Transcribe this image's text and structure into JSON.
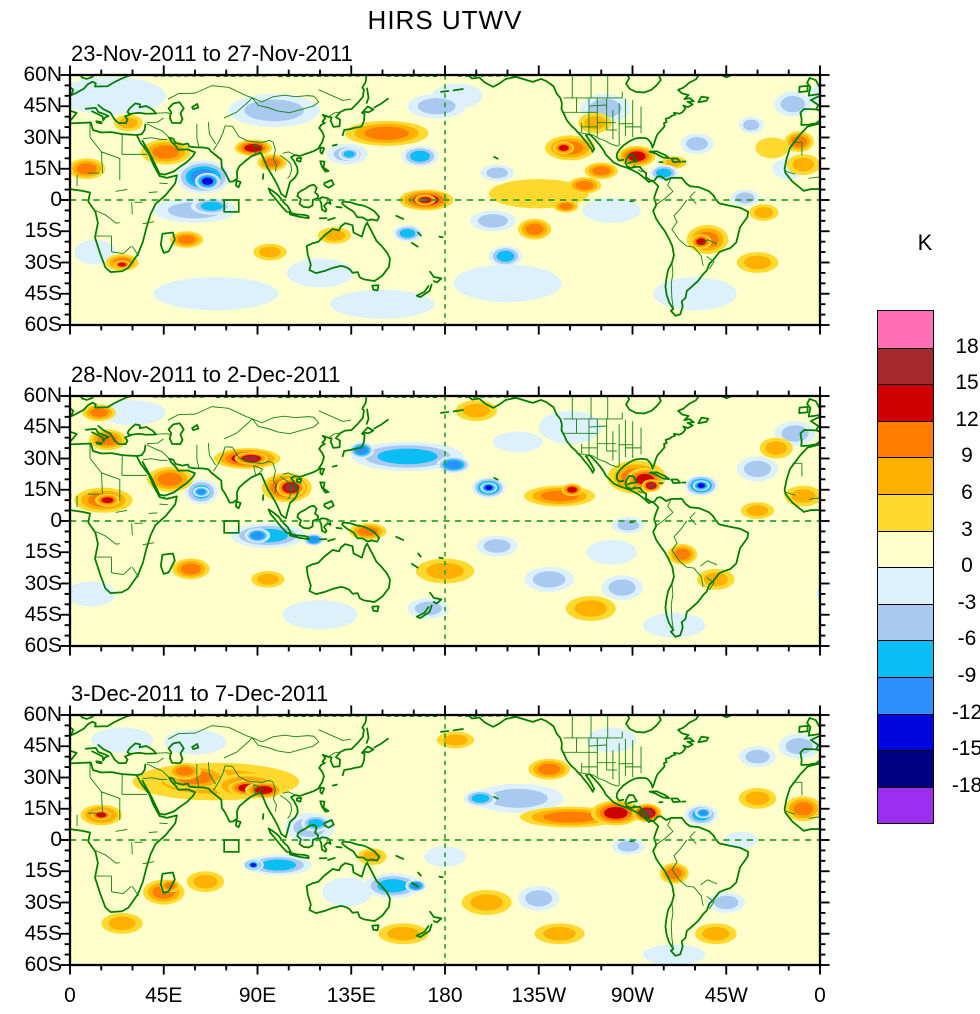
{
  "chart_data": {
    "type": "heatmap",
    "title": "HIRS UTWV",
    "unit": "K",
    "projection": "cylindrical equidistant, lon 0-360 (180 centered by dashed line), lat 60S-60N",
    "axes": {
      "lon_ticks": [
        "0",
        "45E",
        "90E",
        "135E",
        "180",
        "135W",
        "90W",
        "45W",
        "0"
      ],
      "lon_minor_step_deg": 15,
      "lat_ticks": [
        "60N",
        "45N",
        "30N",
        "15N",
        "0",
        "15S",
        "30S",
        "45S",
        "60S"
      ],
      "lat_minor_step_deg": 5,
      "reference_lines": {
        "equator_dashed": true,
        "dateline_dashed": true
      }
    },
    "colorbar": {
      "tick_labels": [
        18,
        15,
        12,
        9,
        6,
        3,
        0,
        -3,
        -6,
        -9,
        -12,
        -15,
        -18
      ],
      "cells_top_to_bottom": [
        "#ff6eb4",
        "#a5292e",
        "#d10000",
        "#ff7d00",
        "#ffb000",
        "#ffd92e",
        "#ffffcb",
        "#dcf1fb",
        "#a9c9f1",
        "#0abef5",
        "#2e90ff",
        "#0007dc",
        "#000082",
        "#9c2eef"
      ],
      "legend_position": "right"
    },
    "palette": {
      "base": "#ffffcb",
      "warm": [
        "#ffd92e",
        "#ffb000",
        "#ff7d00",
        "#d10000",
        "#a5292e",
        "#ff6eb4"
      ],
      "cold": [
        "#dcf1fb",
        "#a9c9f1",
        "#0abef5",
        "#2e90ff",
        "#0007dc",
        "#000082",
        "#9c2eef"
      ]
    },
    "map_colors": {
      "coast": "#007d00",
      "borders": "#168416",
      "dashed_lines": "#2fa02f"
    },
    "region_box": {
      "lon_min": 74,
      "lon_max": 81,
      "lat_min": -5.7,
      "lat_max": 0
    },
    "feature_format": "[lon_deg_east_0_360, lat_deg, rx_deg, ry_deg, peak_anomaly_K]",
    "panels": [
      {
        "title": "23-Nov-2011 to 27-Nov-2011",
        "features": [
          [
            20,
            50,
            26,
            9,
            -3
          ],
          [
            120,
            -35,
            16,
            7,
            -3
          ],
          [
            210,
            -40,
            26,
            9,
            -3
          ],
          [
            300,
            -45,
            20,
            8,
            -3
          ],
          [
            12,
            -25,
            10,
            6,
            -3
          ],
          [
            260,
            -5,
            14,
            6,
            -3
          ],
          [
            186,
            50,
            12,
            6,
            -3
          ],
          [
            345,
            15,
            8,
            5,
            -3
          ],
          [
            70,
            -45,
            30,
            8,
            -3
          ],
          [
            150,
            -50,
            25,
            7,
            -3
          ],
          [
            98,
            43,
            22,
            8,
            -6
          ],
          [
            133,
            22,
            10,
            5,
            -6
          ],
          [
            134,
            22,
            5,
            3,
            -9
          ],
          [
            60,
            -5,
            20,
            6,
            -6
          ],
          [
            68,
            -3,
            10,
            4,
            -9
          ],
          [
            64,
            11,
            13,
            8,
            -12
          ],
          [
            66,
            9,
            6,
            4,
            -15
          ],
          [
            168,
            21,
            9,
            5,
            -9
          ],
          [
            205,
            13,
            8,
            4,
            -6
          ],
          [
            176,
            45,
            14,
            6,
            -6
          ],
          [
            162,
            -16,
            7,
            4,
            -9
          ],
          [
            203,
            -10,
            11,
            5,
            -6
          ],
          [
            209,
            -27,
            8,
            5,
            -9
          ],
          [
            257,
            44,
            12,
            7,
            -6
          ],
          [
            285,
            13,
            7,
            4,
            -9
          ],
          [
            301,
            27,
            8,
            5,
            -6
          ],
          [
            324,
            1,
            7,
            4,
            -6
          ],
          [
            347,
            46,
            9,
            6,
            -6
          ],
          [
            327,
            36,
            6,
            4,
            -6
          ],
          [
            225,
            3,
            24,
            7,
            3
          ],
          [
            247,
            7,
            8,
            4,
            9
          ],
          [
            252,
            37,
            8,
            5,
            6
          ],
          [
            337,
            25,
            8,
            5,
            3
          ],
          [
            330,
            -30,
            10,
            5,
            6
          ],
          [
            56,
            -19,
            8,
            4,
            9
          ],
          [
            96,
            -25,
            8,
            4,
            6
          ],
          [
            127,
            -17,
            8,
            4,
            6
          ],
          [
            28,
            37,
            7,
            4,
            6
          ],
          [
            25,
            -30,
            8,
            4,
            9
          ],
          [
            25,
            -31,
            4,
            2,
            12
          ],
          [
            152,
            32,
            20,
            6,
            9
          ],
          [
            46,
            23,
            12,
            6,
            9
          ],
          [
            8,
            15,
            9,
            5,
            9
          ],
          [
            88,
            25,
            9,
            4,
            12
          ],
          [
            97,
            18,
            7,
            4,
            9
          ],
          [
            171,
            0,
            13,
            5,
            12
          ],
          [
            170.5,
            0,
            5,
            2.5,
            15
          ],
          [
            223,
            -14,
            8,
            5,
            9
          ],
          [
            238,
            -3,
            6,
            3,
            9
          ],
          [
            240,
            25,
            12,
            6,
            9
          ],
          [
            237,
            25,
            5,
            3,
            12
          ],
          [
            255,
            14,
            8,
            4,
            9
          ],
          [
            272,
            21,
            9,
            5,
            12
          ],
          [
            290,
            18,
            6,
            3,
            6
          ],
          [
            306,
            -19,
            10,
            7,
            9
          ],
          [
            303,
            -20,
            5,
            3.5,
            12
          ],
          [
            333,
            -6,
            7,
            4,
            6
          ],
          [
            350,
            28,
            7,
            5,
            9
          ],
          [
            352,
            17,
            8,
            5,
            6
          ]
        ]
      },
      {
        "title": "28-Nov-2011 to 2-Dec-2011",
        "features": [
          [
            30,
            52,
            16,
            6,
            -3
          ],
          [
            120,
            -45,
            18,
            7,
            -3
          ],
          [
            290,
            -50,
            15,
            6,
            -3
          ],
          [
            10,
            -35,
            12,
            6,
            -3
          ],
          [
            240,
            45,
            15,
            8,
            -3
          ],
          [
            215,
            38,
            12,
            5,
            -3
          ],
          [
            260,
            -15,
            12,
            6,
            -3
          ],
          [
            63,
            14,
            8,
            6,
            -9
          ],
          [
            63,
            14,
            4,
            2.5,
            -12
          ],
          [
            95,
            -7,
            18,
            6,
            -9
          ],
          [
            90,
            -7,
            6,
            3.5,
            -12
          ],
          [
            117,
            -9,
            5,
            3,
            -12
          ],
          [
            162,
            31,
            27,
            7,
            -9
          ],
          [
            140,
            34,
            6,
            4,
            -12
          ],
          [
            184,
            27,
            8,
            4,
            -12
          ],
          [
            201,
            16,
            8,
            5,
            -12
          ],
          [
            201,
            16,
            4,
            2.5,
            -15
          ],
          [
            303,
            17,
            8,
            5,
            -12
          ],
          [
            303,
            17,
            4,
            2.5,
            -15
          ],
          [
            268,
            -2,
            8,
            4,
            -6
          ],
          [
            330,
            25,
            10,
            6,
            -6
          ],
          [
            348,
            42,
            10,
            6,
            -6
          ],
          [
            230,
            -28,
            12,
            6,
            -6
          ],
          [
            205,
            -12,
            10,
            5,
            -6
          ],
          [
            172,
            -42,
            10,
            5,
            -6
          ],
          [
            265,
            -32,
            10,
            6,
            -6
          ],
          [
            14,
            52,
            8,
            4,
            9
          ],
          [
            18,
            39,
            9,
            5,
            9
          ],
          [
            16,
            10,
            14,
            6,
            9
          ],
          [
            18,
            10,
            6,
            3,
            12
          ],
          [
            352,
            12,
            9,
            5,
            6
          ],
          [
            48,
            20,
            11,
            6,
            9
          ],
          [
            85,
            30,
            16,
            5,
            12
          ],
          [
            87,
            30,
            8,
            3,
            15
          ],
          [
            104,
            16,
            12,
            7,
            12
          ],
          [
            106,
            16,
            7,
            4.5,
            15
          ],
          [
            143,
            -5,
            9,
            4,
            9
          ],
          [
            58,
            -23,
            9,
            5,
            9
          ],
          [
            95,
            -28,
            8,
            4,
            6
          ],
          [
            180,
            -24,
            14,
            6,
            6
          ],
          [
            235,
            12,
            17,
            5,
            9
          ],
          [
            241,
            15,
            5,
            3,
            12
          ],
          [
            272,
            21,
            14,
            8,
            9
          ],
          [
            276,
            20,
            9,
            5.5,
            12
          ],
          [
            279,
            17,
            4.5,
            3,
            15
          ],
          [
            294,
            -16,
            7,
            5,
            9
          ],
          [
            310,
            -28,
            9,
            5,
            6
          ],
          [
            339,
            35,
            8,
            5,
            6
          ],
          [
            330,
            5,
            8,
            4,
            6
          ],
          [
            250,
            -42,
            12,
            6,
            6
          ],
          [
            195,
            53,
            10,
            5,
            6
          ]
        ]
      },
      {
        "title": "3-Dec-2011 to 7-Dec-2011",
        "features": [
          [
            25,
            48,
            15,
            6,
            -3
          ],
          [
            60,
            47,
            15,
            6,
            -3
          ],
          [
            260,
            48,
            12,
            6,
            -3
          ],
          [
            180,
            -8,
            10,
            5,
            -3
          ],
          [
            290,
            -55,
            15,
            5,
            -3
          ],
          [
            133,
            -25,
            12,
            7,
            -3
          ],
          [
            322,
            0,
            8,
            4,
            -3
          ],
          [
            115,
            6,
            12,
            7,
            -6
          ],
          [
            118,
            8,
            7,
            4,
            -9
          ],
          [
            100,
            -12,
            16,
            5,
            -9
          ],
          [
            88,
            -12,
            5,
            3,
            -12
          ],
          [
            88,
            -12,
            3,
            2,
            -15
          ],
          [
            155,
            -22,
            14,
            6,
            -9
          ],
          [
            166,
            -22,
            5,
            3,
            -12
          ],
          [
            215,
            20,
            22,
            7,
            -6
          ],
          [
            197,
            20,
            8,
            4,
            -9
          ],
          [
            303,
            12,
            8,
            5,
            -9
          ],
          [
            304,
            13,
            4,
            2.5,
            -12
          ],
          [
            268,
            -3,
            8,
            4,
            -6
          ],
          [
            315,
            -30,
            9,
            5,
            -6
          ],
          [
            350,
            45,
            10,
            6,
            -6
          ],
          [
            330,
            40,
            9,
            5,
            -6
          ],
          [
            225,
            -28,
            10,
            6,
            -6
          ],
          [
            70,
            28,
            40,
            9,
            6
          ],
          [
            60,
            30,
            16,
            6,
            9
          ],
          [
            85,
            26,
            16,
            6,
            9
          ],
          [
            85,
            25,
            9,
            4,
            12
          ],
          [
            93,
            24,
            9,
            4,
            12
          ],
          [
            55,
            33,
            8,
            4,
            9
          ],
          [
            15,
            12,
            10,
            5,
            9
          ],
          [
            15,
            12,
            5,
            2.5,
            12
          ],
          [
            352,
            15,
            9,
            6,
            9
          ],
          [
            45,
            -25,
            10,
            6,
            9
          ],
          [
            48,
            -22,
            5,
            3,
            9
          ],
          [
            65,
            -20,
            9,
            5,
            6
          ],
          [
            230,
            34,
            10,
            5,
            9
          ],
          [
            240,
            11,
            24,
            5,
            9
          ],
          [
            262,
            13,
            12,
            6,
            12
          ],
          [
            277,
            13,
            7,
            4.5,
            15
          ],
          [
            290,
            -16,
            7,
            5,
            9
          ],
          [
            330,
            20,
            9,
            5,
            6
          ],
          [
            185,
            48,
            9,
            4,
            6
          ],
          [
            145,
            -8,
            7,
            4,
            6
          ],
          [
            200,
            -30,
            12,
            6,
            6
          ],
          [
            160,
            -45,
            12,
            5,
            6
          ],
          [
            235,
            -45,
            12,
            5,
            6
          ],
          [
            310,
            -45,
            10,
            5,
            6
          ],
          [
            25,
            -40,
            10,
            5,
            6
          ]
        ]
      }
    ]
  }
}
